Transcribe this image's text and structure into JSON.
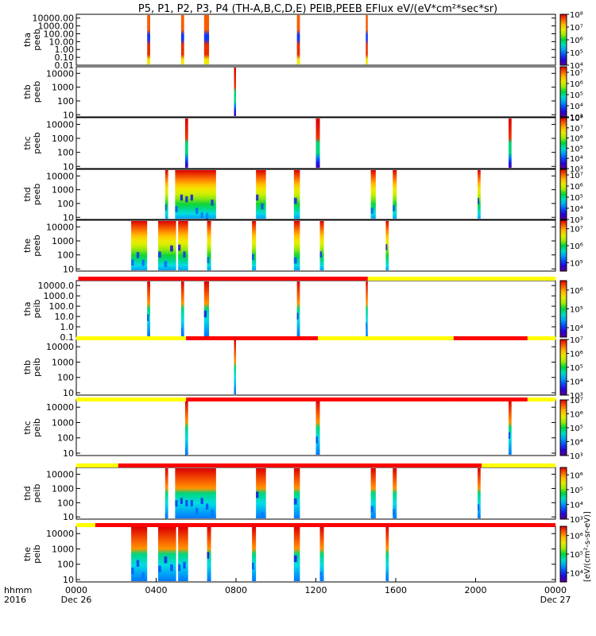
{
  "title": "P5, P1, P2, P3, P4 (TH-A,B,C,D,E) PEIB,PEEB EFlux eV/(eV*cm²*sec*sr)",
  "chart_data": {
    "type": "heatmap",
    "x_axis": {
      "range_hours": [
        0,
        24
      ],
      "tick_labels": [
        "0000",
        "0400",
        "0800",
        "1200",
        "1600",
        "2000",
        "0000"
      ],
      "row_label": "hhmm",
      "year_label": "2016",
      "date_labels": [
        "Dec 26",
        "Dec 27"
      ]
    },
    "colorbar_unit_label": "[eV/(cm²-s-sr-eV)]",
    "panels": [
      {
        "probe": "tha",
        "type": "peeb",
        "y_ticks": [
          "10000.00",
          "1000.00",
          "100.00",
          "10.00",
          "1.00",
          "0.10",
          "0.01"
        ],
        "ylim": [
          0.01,
          30000
        ],
        "cbar_ticks": [
          "10⁸",
          "10⁷",
          "10⁶",
          "10⁵",
          "10⁴"
        ],
        "cbar_range_exp": [
          4,
          8
        ],
        "intervals": [
          [
            3.55,
            3.7,
            "patchy"
          ],
          [
            5.25,
            5.4,
            "patchy"
          ],
          [
            6.4,
            6.65,
            "patchy"
          ],
          [
            11.05,
            11.2,
            "patchy"
          ],
          [
            14.5,
            14.6,
            "patchy"
          ]
        ]
      },
      {
        "probe": "thb",
        "type": "peeb",
        "y_ticks": [
          "10000",
          "1000",
          "100",
          "10"
        ],
        "ylim": [
          7,
          30000
        ],
        "cbar_ticks": [
          "10⁷",
          "10⁶",
          "10⁵",
          "10⁴",
          "10³"
        ],
        "cbar_range_exp": [
          3,
          7.5
        ],
        "intervals": [
          [
            7.9,
            8.0,
            "banded"
          ]
        ]
      },
      {
        "probe": "thc",
        "type": "peeb",
        "y_ticks": [
          "10000",
          "1000",
          "100",
          "10"
        ],
        "ylim": [
          7,
          30000
        ],
        "cbar_ticks": [
          "10⁸",
          "10⁷",
          "10⁶",
          "10⁵",
          "10⁴",
          "10³"
        ],
        "cbar_range_exp": [
          3,
          8
        ],
        "intervals": [
          [
            5.45,
            5.6,
            "banded"
          ],
          [
            12.0,
            12.2,
            "banded"
          ],
          [
            21.65,
            21.8,
            "banded"
          ]
        ]
      },
      {
        "probe": "thd",
        "type": "peeb",
        "y_ticks": [
          "10000",
          "1000",
          "100",
          "10"
        ],
        "ylim": [
          7,
          30000
        ],
        "cbar_ticks": [
          "10⁷",
          "10⁶",
          "10⁵",
          "10⁴",
          "10³"
        ],
        "cbar_range_exp": [
          3,
          7.5
        ],
        "intervals": [
          [
            4.45,
            4.6,
            "smooth"
          ],
          [
            4.95,
            7.0,
            "smooth"
          ],
          [
            9.0,
            9.5,
            "smooth"
          ],
          [
            10.9,
            11.2,
            "smooth"
          ],
          [
            14.75,
            15.0,
            "smooth"
          ],
          [
            15.85,
            16.05,
            "smooth"
          ],
          [
            20.1,
            20.25,
            "smooth"
          ]
        ]
      },
      {
        "probe": "the",
        "type": "peeb",
        "y_ticks": [
          "10000",
          "1000",
          "100",
          "10"
        ],
        "ylim": [
          7,
          30000
        ],
        "cbar_ticks": [
          "10⁷",
          "10⁶",
          "10⁵"
        ],
        "cbar_range_exp": [
          4.5,
          7.5
        ],
        "intervals": [
          [
            2.75,
            3.55,
            "smooth"
          ],
          [
            4.1,
            5.0,
            "smooth"
          ],
          [
            5.1,
            5.6,
            "smooth"
          ],
          [
            6.55,
            6.75,
            "smooth"
          ],
          [
            8.8,
            9.0,
            "smooth"
          ],
          [
            10.9,
            11.2,
            "smooth"
          ],
          [
            12.2,
            12.4,
            "smooth"
          ],
          [
            15.5,
            15.65,
            "smooth"
          ]
        ]
      },
      {
        "probe": "tha",
        "type": "peib",
        "y_ticks": [
          "10000.0",
          "1000.0",
          "100.0",
          "10.0",
          "1.0",
          "0.1"
        ],
        "ylim": [
          0.1,
          30000
        ],
        "cbar_ticks": [
          "10⁶",
          "10⁵",
          "10⁴"
        ],
        "cbar_range_exp": [
          3.5,
          6.5
        ],
        "intervals": [
          [
            3.55,
            3.7,
            "ion"
          ],
          [
            5.25,
            5.4,
            "ion"
          ],
          [
            6.4,
            6.65,
            "ion"
          ],
          [
            11.05,
            11.2,
            "ion"
          ],
          [
            14.5,
            14.6,
            "ion"
          ]
        ]
      },
      {
        "probe": "thb",
        "type": "peib",
        "y_ticks": [
          "10000",
          "1000",
          "100",
          "10"
        ],
        "ylim": [
          7,
          30000
        ],
        "cbar_ticks": [
          "10⁷",
          "10⁶",
          "10⁵",
          "10⁴",
          "10³"
        ],
        "cbar_range_exp": [
          3,
          7
        ],
        "intervals": [
          [
            7.9,
            8.0,
            "ion"
          ]
        ]
      },
      {
        "probe": "thc",
        "type": "peib",
        "y_ticks": [
          "10000",
          "1000",
          "100",
          "10"
        ],
        "ylim": [
          7,
          30000
        ],
        "cbar_ticks": [
          "10⁷",
          "10⁶",
          "10⁵",
          "10⁴",
          "10³"
        ],
        "cbar_range_exp": [
          3,
          7
        ],
        "intervals": [
          [
            5.45,
            5.6,
            "ion"
          ],
          [
            12.0,
            12.2,
            "ion"
          ],
          [
            21.65,
            21.8,
            "ion"
          ]
        ]
      },
      {
        "probe": "thd",
        "type": "peib",
        "y_ticks": [
          "10000",
          "1000",
          "100",
          "10"
        ],
        "ylim": [
          7,
          30000
        ],
        "cbar_ticks": [
          "10⁶",
          "10⁵",
          "10⁴",
          "10³"
        ],
        "cbar_range_exp": [
          3,
          6.5
        ],
        "intervals": [
          [
            4.45,
            4.6,
            "ion"
          ],
          [
            4.95,
            7.0,
            "ion"
          ],
          [
            9.0,
            9.5,
            "ion"
          ],
          [
            10.9,
            11.2,
            "ion"
          ],
          [
            14.75,
            15.0,
            "ion"
          ],
          [
            15.85,
            16.05,
            "ion"
          ],
          [
            20.1,
            20.25,
            "ion"
          ]
        ]
      },
      {
        "probe": "the",
        "type": "peib",
        "y_ticks": [
          "10000",
          "1000",
          "100",
          "10"
        ],
        "ylim": [
          7,
          30000
        ],
        "cbar_ticks": [
          "10⁶",
          "10⁵",
          "10⁴"
        ],
        "cbar_range_exp": [
          3.5,
          6.5
        ],
        "intervals": [
          [
            2.75,
            3.55,
            "ion"
          ],
          [
            4.1,
            5.0,
            "ion"
          ],
          [
            5.1,
            5.6,
            "ion"
          ],
          [
            6.55,
            6.75,
            "ion"
          ],
          [
            8.8,
            9.0,
            "ion"
          ],
          [
            10.9,
            11.2,
            "ion"
          ],
          [
            12.2,
            12.4,
            "ion"
          ],
          [
            15.5,
            15.65,
            "ion"
          ]
        ]
      }
    ],
    "mode_bars": [
      {
        "above_panel": 6,
        "segments": [
          [
            0.1,
            14.6,
            "red"
          ],
          [
            14.6,
            24,
            "yellow"
          ]
        ]
      },
      {
        "above_panel": 7,
        "segments": [
          [
            0,
            5.5,
            "yellow"
          ],
          [
            5.5,
            12.1,
            "red"
          ],
          [
            12.1,
            18.9,
            "yellow"
          ],
          [
            18.9,
            22.6,
            "red"
          ],
          [
            22.6,
            24,
            "yellow"
          ]
        ]
      },
      {
        "above_panel": 8,
        "segments": [
          [
            0,
            5.5,
            "yellow"
          ],
          [
            5.5,
            18.9,
            "red"
          ],
          [
            18.9,
            22.6,
            "red"
          ],
          [
            22.6,
            24,
            "yellow"
          ]
        ]
      },
      {
        "above_panel": 9,
        "segments": [
          [
            0,
            2.1,
            "yellow"
          ],
          [
            2.1,
            20.3,
            "red"
          ],
          [
            20.3,
            24,
            "yellow"
          ]
        ]
      },
      {
        "above_panel": 10,
        "segments": [
          [
            0,
            0.95,
            "yellow"
          ],
          [
            0.95,
            24,
            "red"
          ]
        ]
      }
    ],
    "colors": {
      "red": "#ff0000",
      "yellow": "#ffff00"
    }
  }
}
